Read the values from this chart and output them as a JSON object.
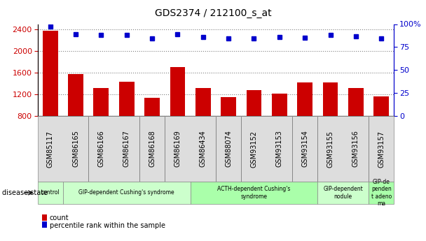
{
  "title": "GDS2374 / 212100_s_at",
  "samples": [
    "GSM85117",
    "GSM86165",
    "GSM86166",
    "GSM86167",
    "GSM86168",
    "GSM86169",
    "GSM86434",
    "GSM88074",
    "GSM93152",
    "GSM93153",
    "GSM93154",
    "GSM93155",
    "GSM93156",
    "GSM93157"
  ],
  "counts": [
    2380,
    1570,
    1310,
    1430,
    1130,
    1700,
    1310,
    1150,
    1270,
    1210,
    1420,
    1420,
    1310,
    1160
  ],
  "percentiles": [
    97,
    89,
    88,
    88,
    84,
    89,
    86,
    84,
    84,
    86,
    85,
    88,
    87,
    84
  ],
  "disease_groups": [
    {
      "label": "control",
      "start": 0,
      "end": 1,
      "color": "#ccffcc"
    },
    {
      "label": "GIP-dependent Cushing's syndrome",
      "start": 1,
      "end": 6,
      "color": "#ccffcc"
    },
    {
      "label": "ACTH-dependent Cushing's\nsyndrome",
      "start": 6,
      "end": 11,
      "color": "#aaffaa"
    },
    {
      "label": "GIP-dependent\nnodule",
      "start": 11,
      "end": 13,
      "color": "#ccffcc"
    },
    {
      "label": "GIP-de\npenden\nt adeno\nma",
      "start": 13,
      "end": 14,
      "color": "#aaffaa"
    }
  ],
  "ylim_left": [
    800,
    2500
  ],
  "ylim_right": [
    0,
    100
  ],
  "yticks_left": [
    800,
    1200,
    1600,
    2000,
    2400
  ],
  "yticks_right": [
    0,
    25,
    50,
    75,
    100
  ],
  "bar_color": "#cc0000",
  "dot_color": "#0000cc",
  "bar_width": 0.6,
  "title_fontsize": 10,
  "tick_fontsize": 8,
  "sample_fontsize": 7
}
